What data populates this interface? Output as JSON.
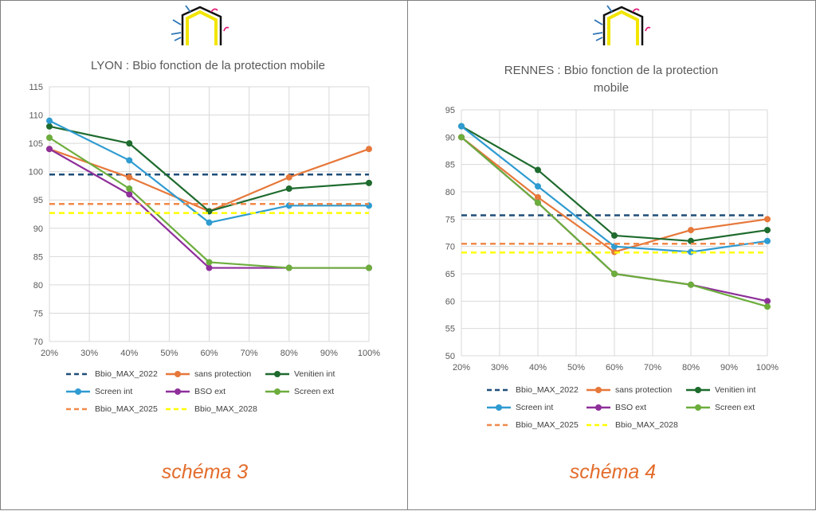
{
  "colors": {
    "bbio_2022": "#1f4e79",
    "sans_protection": "#e6783a",
    "venitien_int": "#1e6b2e",
    "screen_int": "#2e9bd1",
    "bso_ext": "#8e2f9a",
    "screen_ext": "#6cad3c",
    "bbio_2025": "#f08a4b",
    "bbio_2028": "#ffff00",
    "schema_label": "#e36c2a"
  },
  "icons": [
    "house-icon"
  ],
  "chart_data": [
    {
      "type": "line",
      "title": "LYON : Bbio fonction de la protection mobile",
      "caption": "schéma 3",
      "categories": [
        "20%",
        "30%",
        "40%",
        "50%",
        "60%",
        "70%",
        "80%",
        "90%",
        "100%"
      ],
      "y_ticks": [
        "70",
        "75",
        "80",
        "85",
        "90",
        "95",
        "100",
        "105",
        "110",
        "115"
      ],
      "ylim": [
        70,
        115
      ],
      "grid": true,
      "legend_position": "bottom",
      "series": [
        {
          "name": "Bbio_MAX_2022",
          "style": "dashed",
          "x": [
            "20%",
            "100%"
          ],
          "values": [
            99.5,
            99.5
          ]
        },
        {
          "name": "sans protection",
          "style": "solid",
          "x": [
            "20%",
            "40%",
            "60%",
            "80%",
            "100%"
          ],
          "values": [
            104,
            99,
            93,
            99,
            104
          ]
        },
        {
          "name": "Venitien int",
          "style": "solid",
          "x": [
            "20%",
            "40%",
            "60%",
            "80%",
            "100%"
          ],
          "values": [
            108,
            105,
            93,
            97,
            98
          ]
        },
        {
          "name": "Screen int",
          "style": "solid",
          "x": [
            "20%",
            "40%",
            "60%",
            "80%",
            "100%"
          ],
          "values": [
            109,
            102,
            91,
            94,
            94
          ]
        },
        {
          "name": "BSO ext",
          "style": "solid",
          "x": [
            "20%",
            "40%",
            "60%",
            "80%",
            "100%"
          ],
          "values": [
            104,
            96,
            83,
            83,
            83
          ]
        },
        {
          "name": "Screen ext",
          "style": "solid",
          "x": [
            "20%",
            "40%",
            "60%",
            "80%",
            "100%"
          ],
          "values": [
            106,
            97,
            84,
            83,
            83
          ]
        },
        {
          "name": "Bbio_MAX_2025",
          "style": "dashed",
          "x": [
            "20%",
            "100%"
          ],
          "values": [
            94.3,
            94.3
          ]
        },
        {
          "name": "Bbio_MAX_2028",
          "style": "dashed",
          "x": [
            "20%",
            "100%"
          ],
          "values": [
            92.7,
            92.7
          ]
        }
      ]
    },
    {
      "type": "line",
      "title": "RENNES : Bbio fonction de la protection mobile",
      "caption": "schéma 4",
      "categories": [
        "20%",
        "30%",
        "40%",
        "50%",
        "60%",
        "70%",
        "80%",
        "90%",
        "100%"
      ],
      "y_ticks": [
        "50",
        "55",
        "60",
        "65",
        "70",
        "75",
        "80",
        "85",
        "90",
        "95"
      ],
      "ylim": [
        50,
        95
      ],
      "grid": true,
      "legend_position": "bottom",
      "series": [
        {
          "name": "Bbio_MAX_2022",
          "style": "dashed",
          "x": [
            "20%",
            "100%"
          ],
          "values": [
            75.7,
            75.7
          ]
        },
        {
          "name": "sans protection",
          "style": "solid",
          "x": [
            "20%",
            "40%",
            "60%",
            "80%",
            "100%"
          ],
          "values": [
            90,
            79,
            69,
            73,
            75
          ]
        },
        {
          "name": "Venitien int",
          "style": "solid",
          "x": [
            "20%",
            "40%",
            "60%",
            "80%",
            "100%"
          ],
          "values": [
            92,
            84,
            72,
            71,
            73
          ]
        },
        {
          "name": "Screen int",
          "style": "solid",
          "x": [
            "20%",
            "40%",
            "60%",
            "80%",
            "100%"
          ],
          "values": [
            92,
            81,
            70,
            69,
            71
          ]
        },
        {
          "name": "BSO ext",
          "style": "solid",
          "x": [
            "20%",
            "40%",
            "60%",
            "80%",
            "100%"
          ],
          "values": [
            90,
            78,
            65,
            63,
            60
          ]
        },
        {
          "name": "Screen ext",
          "style": "solid",
          "x": [
            "20%",
            "40%",
            "60%",
            "80%",
            "100%"
          ],
          "values": [
            90,
            78,
            65,
            63,
            59
          ]
        },
        {
          "name": "Bbio_MAX_2025",
          "style": "dashed",
          "x": [
            "20%",
            "100%"
          ],
          "values": [
            70.5,
            70.5
          ]
        },
        {
          "name": "Bbio_MAX_2028",
          "style": "dashed",
          "x": [
            "20%",
            "100%"
          ],
          "values": [
            68.9,
            68.9
          ]
        }
      ]
    }
  ]
}
